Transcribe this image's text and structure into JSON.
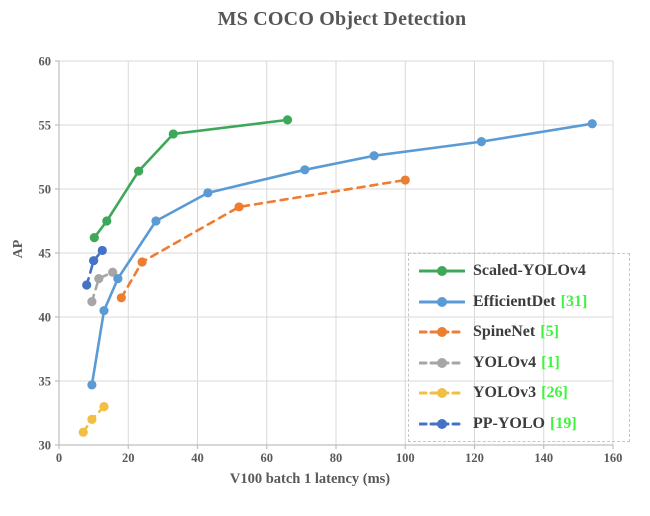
{
  "chart_data": {
    "type": "line",
    "title": "MS COCO Object Detection",
    "xlabel": "V100 batch 1 latency (ms)",
    "ylabel": "AP",
    "xlim": [
      0,
      160
    ],
    "ylim": [
      30,
      60
    ],
    "x_ticks": [
      0,
      20,
      40,
      60,
      80,
      100,
      120,
      140,
      160
    ],
    "y_ticks": [
      30,
      35,
      40,
      45,
      50,
      55,
      60
    ],
    "grid": true,
    "legend_position": "bottom-right",
    "series": [
      {
        "name": "Scaled-YOLOv4",
        "cite": "",
        "color": "#3EA85A",
        "style": "solid",
        "points": [
          [
            10.2,
            46.2
          ],
          [
            13.8,
            47.5
          ],
          [
            23,
            51.4
          ],
          [
            33,
            54.3
          ],
          [
            66,
            55.4
          ]
        ]
      },
      {
        "name": "EfficientDet",
        "cite": "[31]",
        "color": "#5B9BD5",
        "style": "solid",
        "points": [
          [
            9.5,
            34.7
          ],
          [
            13,
            40.5
          ],
          [
            17,
            43.0
          ],
          [
            28,
            47.5
          ],
          [
            43,
            49.7
          ],
          [
            71,
            51.5
          ],
          [
            91,
            52.6
          ],
          [
            122,
            53.7
          ],
          [
            154,
            55.1
          ]
        ]
      },
      {
        "name": "SpineNet",
        "cite": "[5]",
        "color": "#ED7D31",
        "style": "dashed",
        "points": [
          [
            18,
            41.5
          ],
          [
            24,
            44.3
          ],
          [
            52,
            48.6
          ],
          [
            100,
            50.7
          ]
        ]
      },
      {
        "name": "YOLOv4",
        "cite": "[1]",
        "color": "#A6A6A6",
        "style": "dashed",
        "points": [
          [
            9.5,
            41.2
          ],
          [
            11.5,
            43.0
          ],
          [
            15.5,
            43.5
          ]
        ]
      },
      {
        "name": "YOLOv3",
        "cite": "[26]",
        "color": "#F2BF42",
        "style": "dashed",
        "points": [
          [
            7,
            31.0
          ],
          [
            9.5,
            32.0
          ],
          [
            13,
            33.0
          ]
        ]
      },
      {
        "name": "PP-YOLO",
        "cite": "[19]",
        "color": "#4472C4",
        "style": "dashed",
        "points": [
          [
            8,
            42.5
          ],
          [
            10,
            44.4
          ],
          [
            12.5,
            45.2
          ]
        ]
      }
    ],
    "colors": {
      "grid": "#D9D9D9",
      "axis": "#BFBFBF",
      "text": "#595959",
      "title_text": "#565656",
      "legend_text": "#3C3C3C",
      "citation": "#3EF43E",
      "background": "#FFFFFF"
    }
  }
}
